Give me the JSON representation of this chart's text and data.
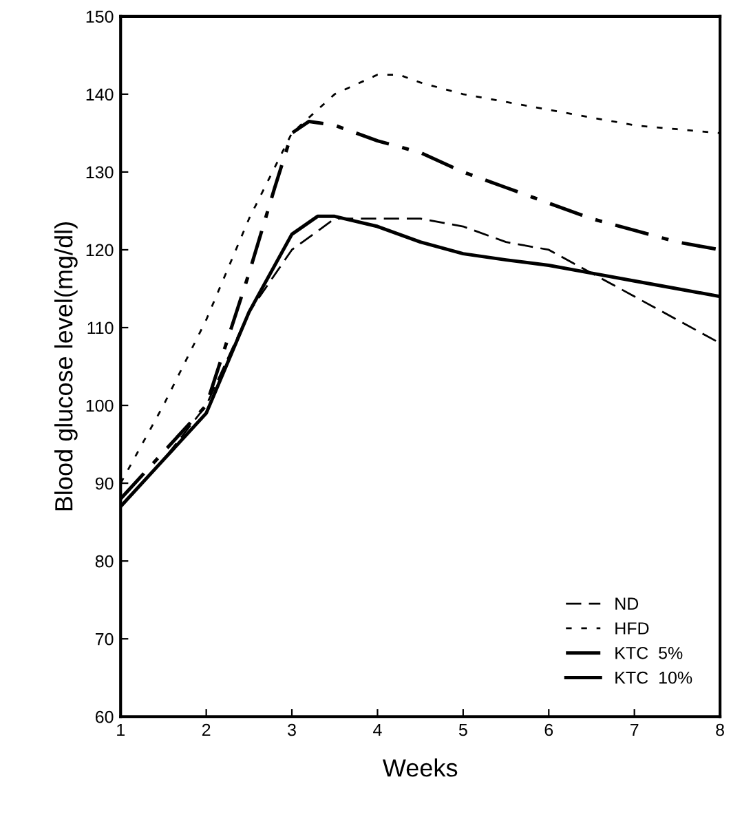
{
  "chart_data": {
    "type": "line",
    "xlabel": "Weeks",
    "ylabel": "Blood glucose level(mg/dl)",
    "xlim": [
      1,
      8
    ],
    "ylim": [
      60,
      150
    ],
    "xticks": [
      1,
      2,
      3,
      4,
      5,
      6,
      7,
      8
    ],
    "yticks": [
      60,
      70,
      80,
      90,
      100,
      110,
      120,
      130,
      140,
      150
    ],
    "grid": false,
    "legend": "bottom right",
    "marker": "none",
    "series": [
      {
        "name": "ND",
        "color": "#000000",
        "line_style": "dashed",
        "x": [
          1,
          1.5,
          2,
          2.5,
          3,
          3.5,
          4,
          4.5,
          5,
          5.5,
          6,
          6.5,
          7,
          7.5,
          8
        ],
        "values": [
          87,
          93,
          100,
          112,
          120,
          124,
          124,
          124,
          123,
          121,
          120,
          117,
          114,
          111,
          108
        ]
      },
      {
        "name": "HFD",
        "color": "#000000",
        "line_style": "dotted",
        "x": [
          1,
          1.5,
          2,
          2.5,
          3,
          3.5,
          4,
          4.25,
          4.5,
          5,
          5.5,
          6,
          6.5,
          7,
          7.5,
          8
        ],
        "values": [
          90,
          100,
          111,
          124,
          135,
          140,
          142.5,
          142.5,
          141.5,
          140,
          139,
          138,
          137,
          136,
          135.5,
          135
        ]
      },
      {
        "name": "KTC  5%",
        "color": "#000000",
        "line_style": "dashdot",
        "x": [
          1,
          1.5,
          2,
          2.5,
          2.8,
          3,
          3.2,
          3.5,
          4,
          4.5,
          5,
          5.5,
          6,
          6.5,
          7,
          7.5,
          8
        ],
        "values": [
          88,
          94,
          100,
          117,
          128,
          135,
          136.5,
          136,
          134,
          132.5,
          130,
          128,
          126,
          124,
          122.5,
          121,
          120
        ]
      },
      {
        "name": "KTC  10%",
        "color": "#000000",
        "line_style": "solid",
        "x": [
          1,
          1.5,
          2,
          2.5,
          3,
          3.3,
          3.5,
          4,
          4.5,
          5,
          5.5,
          6,
          6.5,
          7,
          7.5,
          8
        ],
        "values": [
          87,
          93,
          99,
          112,
          122,
          124.3,
          124.3,
          123,
          121,
          119.5,
          118.7,
          118,
          117,
          116,
          115,
          114
        ]
      }
    ]
  }
}
